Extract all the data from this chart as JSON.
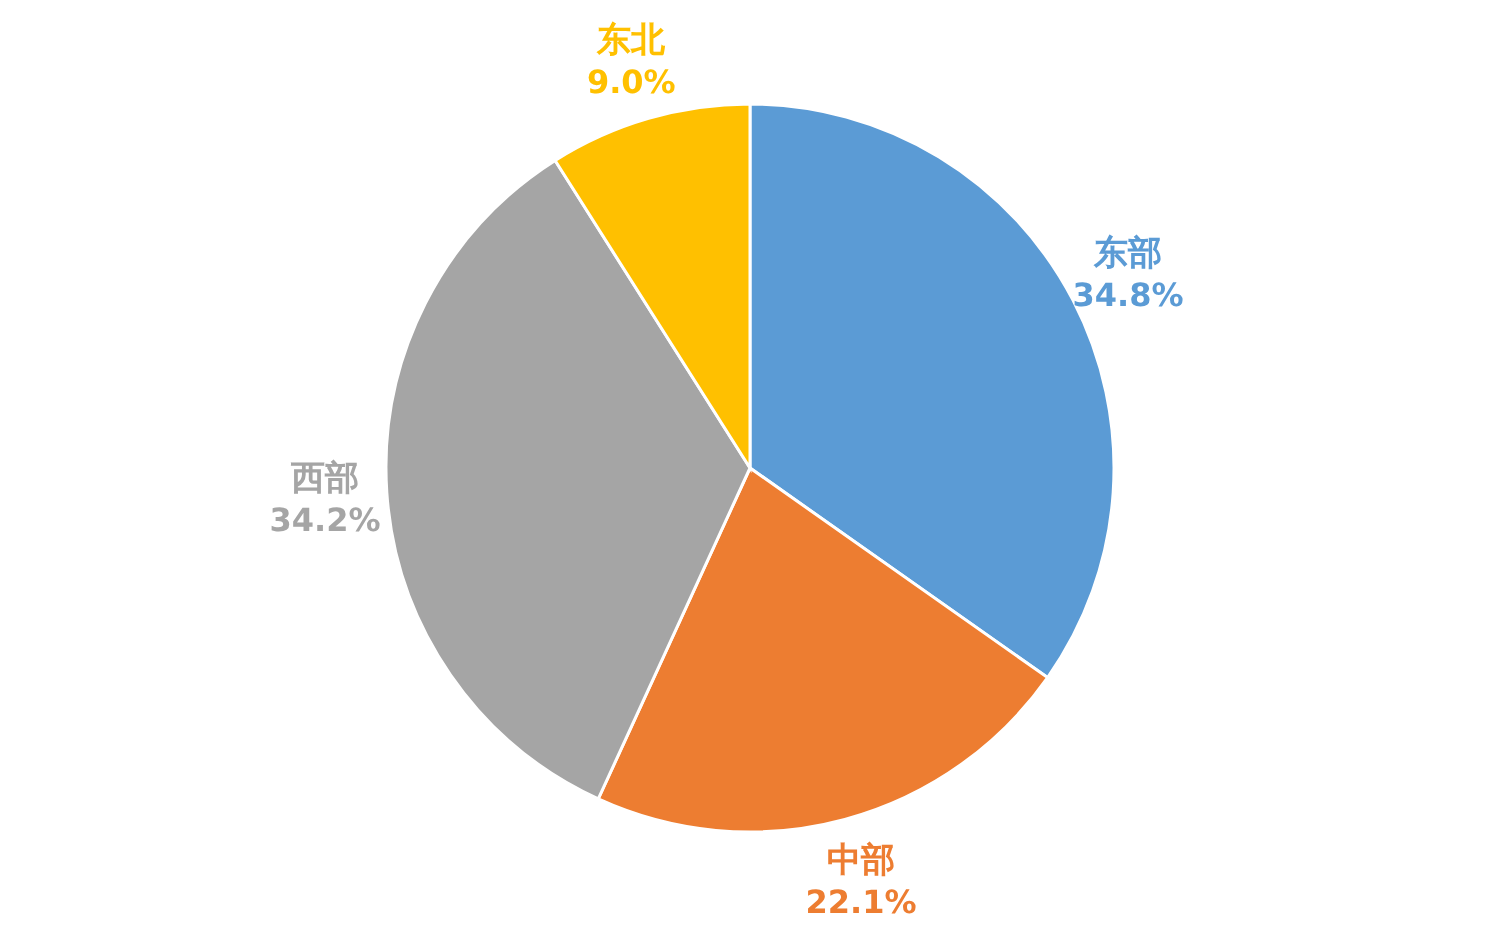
{
  "chart_data": {
    "type": "pie",
    "categories": [
      "东部",
      "中部",
      "西部",
      "东北"
    ],
    "values": [
      34.8,
      22.1,
      34.2,
      9.0
    ],
    "colors": [
      "#5b9bd5",
      "#ed7d31",
      "#a5a5a5",
      "#ffc000"
    ],
    "value_labels": [
      "34.8%",
      "22.1%",
      "34.2%",
      "9.0%"
    ],
    "legend": false
  }
}
